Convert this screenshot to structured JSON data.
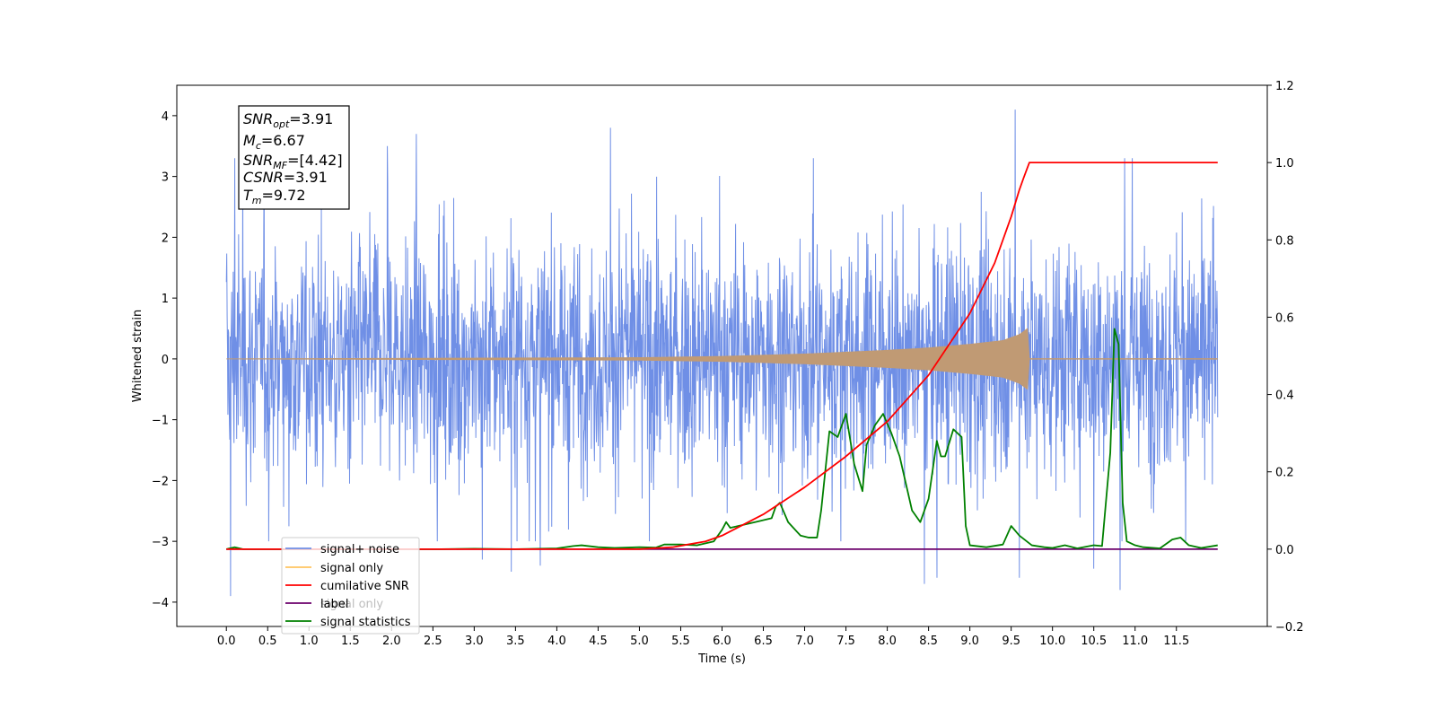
{
  "chart_data": {
    "type": "line",
    "xlabel": "Time (s)",
    "ylabel": "Whitened strain",
    "xlim": [
      -0.6,
      12.6
    ],
    "ylim": [
      -4.4,
      4.5
    ],
    "y2lim": [
      -0.2,
      1.2
    ],
    "x_ticks": [
      0.0,
      0.5,
      1.0,
      1.5,
      2.0,
      2.5,
      3.0,
      3.5,
      4.0,
      4.5,
      5.0,
      5.5,
      6.0,
      6.5,
      7.0,
      7.5,
      8.0,
      8.5,
      9.0,
      9.5,
      10.0,
      10.5,
      11.0,
      11.5
    ],
    "x_tick_labels": [
      "0.0",
      "0.5",
      "1.0",
      "1.5",
      "2.0",
      "2.5",
      "3.0",
      "3.5",
      "4.0",
      "4.5",
      "5.0",
      "5.5",
      "6.0",
      "6.5",
      "7.0",
      "7.5",
      "8.0",
      "8.5",
      "9.0",
      "9.5",
      "10.0",
      "10.5",
      "11.0",
      "11.5"
    ],
    "y_ticks": [
      -4,
      -3,
      -2,
      -1,
      0,
      1,
      2,
      3,
      4
    ],
    "y_tick_labels": [
      "−4",
      "−3",
      "−2",
      "−1",
      "0",
      "1",
      "2",
      "3",
      "4"
    ],
    "y2_ticks": [
      -0.2,
      0.0,
      0.2,
      0.4,
      0.6,
      0.8,
      1.0,
      1.2
    ],
    "y2_tick_labels": [
      "−0.2",
      "0.0",
      "0.2",
      "0.4",
      "0.6",
      "0.8",
      "1.0",
      "1.2"
    ],
    "grid": false,
    "legend_position": "lower-left",
    "legend": [
      {
        "label": "signal+ noise",
        "color": "#6f8fe6"
      },
      {
        "label": "signal only",
        "color": "#ffc561"
      },
      {
        "label": "cumilative SNR",
        "color": "#ff0000"
      },
      {
        "label": "label",
        "color": "#6b006b"
      },
      {
        "label": "signal statistics",
        "color": "#008000"
      }
    ],
    "legend_ghost_text": [
      "signal only"
    ],
    "info_box": [
      {
        "base": "SNR",
        "sub": "opt",
        "rest": "=3.91"
      },
      {
        "base": "M",
        "sub": "c",
        "rest": "=6.67"
      },
      {
        "base": "SNR",
        "sub": "MF",
        "rest": "=[4.42]"
      },
      {
        "base": "CSNR",
        "sub": "",
        "rest": "=3.91"
      },
      {
        "base": "T",
        "sub": "m",
        "rest": "=9.72"
      }
    ],
    "noise_series": {
      "name": "signal+ noise",
      "axis": "left",
      "color": "#6f8fe6",
      "x_range": [
        0.0,
        12.0
      ],
      "envelope_typical": 1.8,
      "extreme_peaks": [
        {
          "x": 0.05,
          "y": -3.9
        },
        {
          "x": 0.1,
          "y": 3.3
        },
        {
          "x": 0.2,
          "y": 3.2
        },
        {
          "x": 1.95,
          "y": 3.5
        },
        {
          "x": 2.3,
          "y": 3.7
        },
        {
          "x": 3.1,
          "y": -3.3
        },
        {
          "x": 3.45,
          "y": -3.5
        },
        {
          "x": 3.8,
          "y": -3.4
        },
        {
          "x": 4.65,
          "y": 3.8
        },
        {
          "x": 8.45,
          "y": -3.7
        },
        {
          "x": 8.6,
          "y": -3.6
        },
        {
          "x": 9.55,
          "y": 4.1
        },
        {
          "x": 9.6,
          "y": -3.6
        },
        {
          "x": 10.5,
          "y": -3.45
        },
        {
          "x": 10.82,
          "y": -3.8
        }
      ]
    },
    "signal_series": {
      "name": "signal only",
      "axis": "left",
      "color": "#c09a74",
      "x_range": [
        0.0,
        12.0
      ],
      "merger_time": 9.72,
      "envelope": [
        {
          "x": 0.0,
          "y": 0.0
        },
        {
          "x": 5.0,
          "y": 0.02
        },
        {
          "x": 6.0,
          "y": 0.04
        },
        {
          "x": 7.0,
          "y": 0.08
        },
        {
          "x": 8.0,
          "y": 0.14
        },
        {
          "x": 8.5,
          "y": 0.18
        },
        {
          "x": 9.0,
          "y": 0.24
        },
        {
          "x": 9.4,
          "y": 0.3
        },
        {
          "x": 9.6,
          "y": 0.4
        },
        {
          "x": 9.7,
          "y": 0.5
        },
        {
          "x": 9.72,
          "y": 0.0
        }
      ]
    },
    "series": [
      {
        "name": "cumilative SNR",
        "axis": "right",
        "color": "#ff0000",
        "x": [
          0.0,
          5.0,
          5.4,
          5.8,
          6.0,
          6.5,
          7.0,
          7.5,
          8.0,
          8.5,
          9.0,
          9.3,
          9.5,
          9.6,
          9.65,
          9.72,
          12.0
        ],
        "y": [
          0.0,
          0.0,
          0.005,
          0.02,
          0.035,
          0.09,
          0.16,
          0.24,
          0.33,
          0.45,
          0.61,
          0.74,
          0.86,
          0.93,
          0.96,
          1.0,
          1.0
        ]
      },
      {
        "name": "label",
        "axis": "right",
        "color": "#6b006b",
        "x": [
          0.0,
          12.0
        ],
        "y": [
          0.0,
          0.0
        ]
      },
      {
        "name": "signal statistics",
        "axis": "right",
        "color": "#008000",
        "x": [
          0.0,
          0.1,
          0.2,
          1.0,
          2.0,
          2.6,
          3.0,
          3.5,
          4.0,
          4.2,
          4.3,
          4.5,
          4.7,
          5.0,
          5.2,
          5.3,
          5.5,
          5.7,
          5.9,
          6.0,
          6.05,
          6.1,
          6.2,
          6.4,
          6.6,
          6.65,
          6.7,
          6.8,
          6.95,
          7.05,
          7.15,
          7.2,
          7.3,
          7.4,
          7.5,
          7.6,
          7.7,
          7.75,
          7.85,
          7.95,
          8.05,
          8.15,
          8.3,
          8.4,
          8.5,
          8.6,
          8.65,
          8.7,
          8.8,
          8.9,
          8.95,
          9.0,
          9.2,
          9.4,
          9.5,
          9.6,
          9.75,
          9.9,
          10.0,
          10.15,
          10.3,
          10.5,
          10.6,
          10.7,
          10.75,
          10.8,
          10.85,
          10.9,
          11.0,
          11.1,
          11.3,
          11.45,
          11.55,
          11.65,
          11.8,
          12.0
        ],
        "y": [
          0.0,
          0.005,
          0.0,
          0.0,
          0.0,
          0.0,
          0.001,
          0.0,
          0.002,
          0.008,
          0.01,
          0.005,
          0.003,
          0.005,
          0.004,
          0.012,
          0.012,
          0.01,
          0.02,
          0.05,
          0.07,
          0.055,
          0.06,
          0.07,
          0.08,
          0.11,
          0.12,
          0.07,
          0.035,
          0.03,
          0.03,
          0.1,
          0.305,
          0.29,
          0.35,
          0.22,
          0.15,
          0.27,
          0.32,
          0.35,
          0.3,
          0.24,
          0.1,
          0.07,
          0.13,
          0.28,
          0.24,
          0.24,
          0.31,
          0.29,
          0.06,
          0.01,
          0.005,
          0.012,
          0.06,
          0.035,
          0.01,
          0.005,
          0.003,
          0.01,
          0.002,
          0.01,
          0.008,
          0.25,
          0.57,
          0.53,
          0.12,
          0.02,
          0.01,
          0.005,
          0.002,
          0.025,
          0.03,
          0.01,
          0.003,
          0.01
        ]
      }
    ]
  }
}
